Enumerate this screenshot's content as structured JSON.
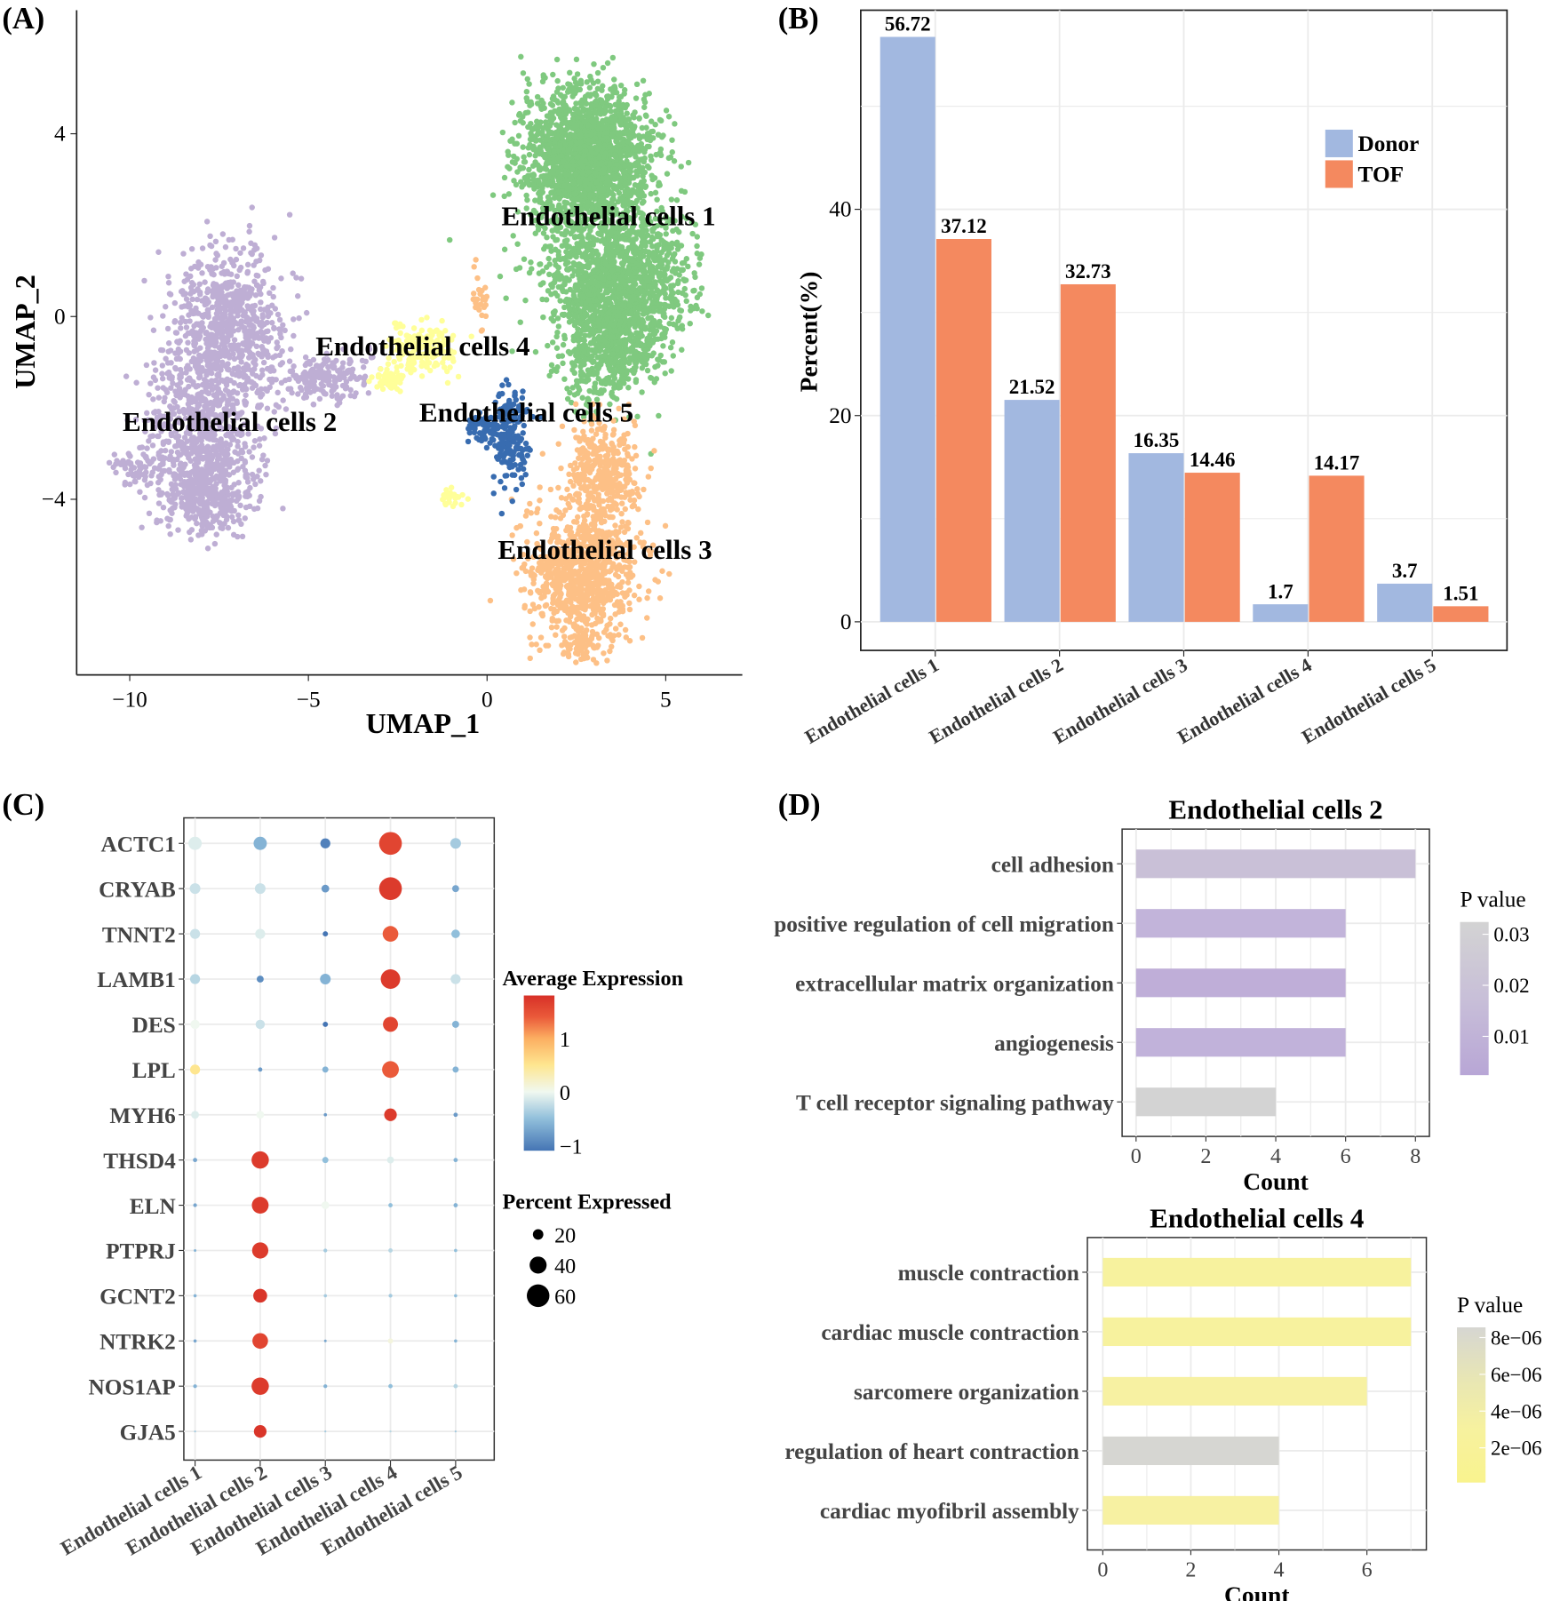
{
  "chart_data": [
    {
      "panel": "(A)",
      "type": "scatter",
      "xlabel": "UMAP_1",
      "ylabel": "UMAP_2",
      "xticks": [
        -10,
        -5,
        0,
        5
      ],
      "yticks": [
        4,
        0,
        -4
      ],
      "xlim": [
        -11.5,
        7
      ],
      "ylim": [
        -7.8,
        6.9
      ],
      "grid": false,
      "clusters": [
        {
          "name": "Endothelial cells 1",
          "color": "#7fc97f",
          "label_at": [
            3.4,
            2.2
          ]
        },
        {
          "name": "Endothelial cells 2",
          "color": "#beaed4",
          "label_at": [
            -7.2,
            -2.3
          ]
        },
        {
          "name": "Endothelial cells 3",
          "color": "#fdc086",
          "label_at": [
            3.3,
            -5.1
          ]
        },
        {
          "name": "Endothelial cells 4",
          "color": "#ffff99",
          "label_at": [
            -1.8,
            -0.65
          ]
        },
        {
          "name": "Endothelial cells 5",
          "color": "#386cb0",
          "label_at": [
            1.1,
            -2.1
          ]
        }
      ]
    },
    {
      "panel": "(B)",
      "type": "bar",
      "ylabel": "Percent(%)",
      "categories": [
        "Endothelial cells 1",
        "Endothelial cells 2",
        "Endothelial cells 3",
        "Endothelial cells 4",
        "Endothelial cells 5"
      ],
      "series": [
        {
          "name": "Donor",
          "color": "#a2b8e0",
          "values": [
            56.72,
            21.52,
            16.35,
            1.7,
            3.7
          ],
          "labels": [
            "56.72",
            "21.52",
            "16.35",
            "1.7",
            "3.7"
          ]
        },
        {
          "name": "TOF",
          "color": "#f4895f",
          "values": [
            37.12,
            32.73,
            14.46,
            14.17,
            1.51
          ],
          "labels": [
            "37.12",
            "32.73",
            "14.46",
            "14.17",
            "1.51"
          ]
        }
      ],
      "yticks": [
        0,
        20,
        40
      ],
      "ylim": [
        0,
        59.5
      ],
      "grid": true,
      "legend": "top-right"
    },
    {
      "panel": "(C)",
      "type": "dot",
      "genes": [
        "ACTC1",
        "CRYAB",
        "TNNT2",
        "LAMB1",
        "DES",
        "LPL",
        "MYH6",
        "THSD4",
        "ELN",
        "PTPRJ",
        "GCNT2",
        "NTRK2",
        "NOS1AP",
        "GJA5"
      ],
      "categories": [
        "Endothelial cells 1",
        "Endothelial cells 2",
        "Endothelial cells 3",
        "Endothelial cells 4",
        "Endothelial cells 5"
      ],
      "avg_expression": [
        [
          -0.1,
          -0.6,
          -1.0,
          1.6,
          -0.4
        ],
        [
          -0.2,
          -0.2,
          -0.8,
          1.7,
          -0.7
        ],
        [
          -0.2,
          -0.1,
          -1.1,
          1.4,
          -0.5
        ],
        [
          -0.3,
          -0.9,
          -0.6,
          1.7,
          -0.2
        ],
        [
          0,
          -0.2,
          -1.1,
          1.6,
          -0.6
        ],
        [
          0.5,
          -0.8,
          -0.6,
          1.4,
          -0.6
        ],
        [
          -0.1,
          0,
          -0.8,
          1.7,
          -0.8
        ],
        [
          -0.7,
          1.7,
          -0.5,
          -0.1,
          -0.6
        ],
        [
          -0.7,
          1.7,
          0,
          -0.5,
          -0.6
        ],
        [
          -0.6,
          1.7,
          -0.4,
          -0.3,
          -0.5
        ],
        [
          -0.6,
          1.75,
          -0.4,
          -0.4,
          -0.5
        ],
        [
          -0.7,
          1.6,
          -0.7,
          0.1,
          -0.6
        ],
        [
          -0.6,
          1.7,
          -0.6,
          -0.5,
          -0.3
        ],
        [
          -0.4,
          1.75,
          -0.4,
          -0.3,
          -0.4
        ]
      ],
      "percent_expressed": [
        [
          30,
          30,
          20,
          65,
          22
        ],
        [
          22,
          22,
          14,
          65,
          12
        ],
        [
          20,
          20,
          8,
          38,
          16
        ],
        [
          20,
          12,
          22,
          52,
          20
        ],
        [
          18,
          18,
          8,
          36,
          12
        ],
        [
          20,
          6,
          10,
          42,
          10
        ],
        [
          14,
          14,
          4,
          28,
          6
        ],
        [
          6,
          44,
          10,
          12,
          6
        ],
        [
          5,
          42,
          14,
          6,
          6
        ],
        [
          3,
          40,
          5,
          6,
          4
        ],
        [
          4,
          32,
          4,
          5,
          4
        ],
        [
          4,
          38,
          3,
          8,
          4
        ],
        [
          5,
          44,
          5,
          6,
          6
        ],
        [
          2,
          28,
          2,
          2,
          2
        ]
      ],
      "color_legend": {
        "title": "Average Expression",
        "ticks": [
          "1",
          "0",
          "−1"
        ],
        "range": [
          -1.1,
          1.8
        ]
      },
      "size_legend": {
        "title": "Percent Expressed",
        "values": [
          20,
          40,
          60
        ],
        "labels": [
          "20",
          "40",
          "60"
        ]
      }
    },
    {
      "panel": "(D)",
      "type": "bar",
      "orientation": "horizontal",
      "title": "Endothelial cells 2",
      "xlabel": "Count",
      "categories": [
        "cell adhesion",
        "positive regulation of cell migration",
        "extracellular matrix organization",
        "angiogenesis",
        "T cell receptor signaling pathway"
      ],
      "values": [
        8,
        6,
        6,
        6,
        4
      ],
      "colors": [
        "#c9c0d7",
        "#c2b4da",
        "#bfaed8",
        "#c1b2da",
        "#d3d3d3"
      ],
      "xticks": [
        "0",
        "2",
        "4",
        "6",
        "8"
      ],
      "xlim": [
        -0.4,
        8.4
      ],
      "color_legend": {
        "title": "P value",
        "ticks": [
          "0.03",
          "0.02",
          "0.01"
        ]
      }
    },
    {
      "type": "bar",
      "orientation": "horizontal",
      "title": "Endothelial cells 4",
      "xlabel": "Count",
      "categories": [
        "muscle contraction",
        "cardiac muscle contraction",
        "sarcomere organization",
        "regulation of heart contraction",
        "cardiac myofibril assembly"
      ],
      "values": [
        7,
        7,
        6,
        4,
        4
      ],
      "colors": [
        "#f7f29e",
        "#f7f29e",
        "#f7f1a2",
        "#d6d6d2",
        "#f7f1a2"
      ],
      "xticks": [
        "0",
        "2",
        "4",
        "6"
      ],
      "xlim": [
        -0.35,
        7.35
      ],
      "color_legend": {
        "title": "P value",
        "ticks": [
          "8e−06",
          "6e−06",
          "4e−06",
          "2e−06"
        ]
      }
    }
  ]
}
